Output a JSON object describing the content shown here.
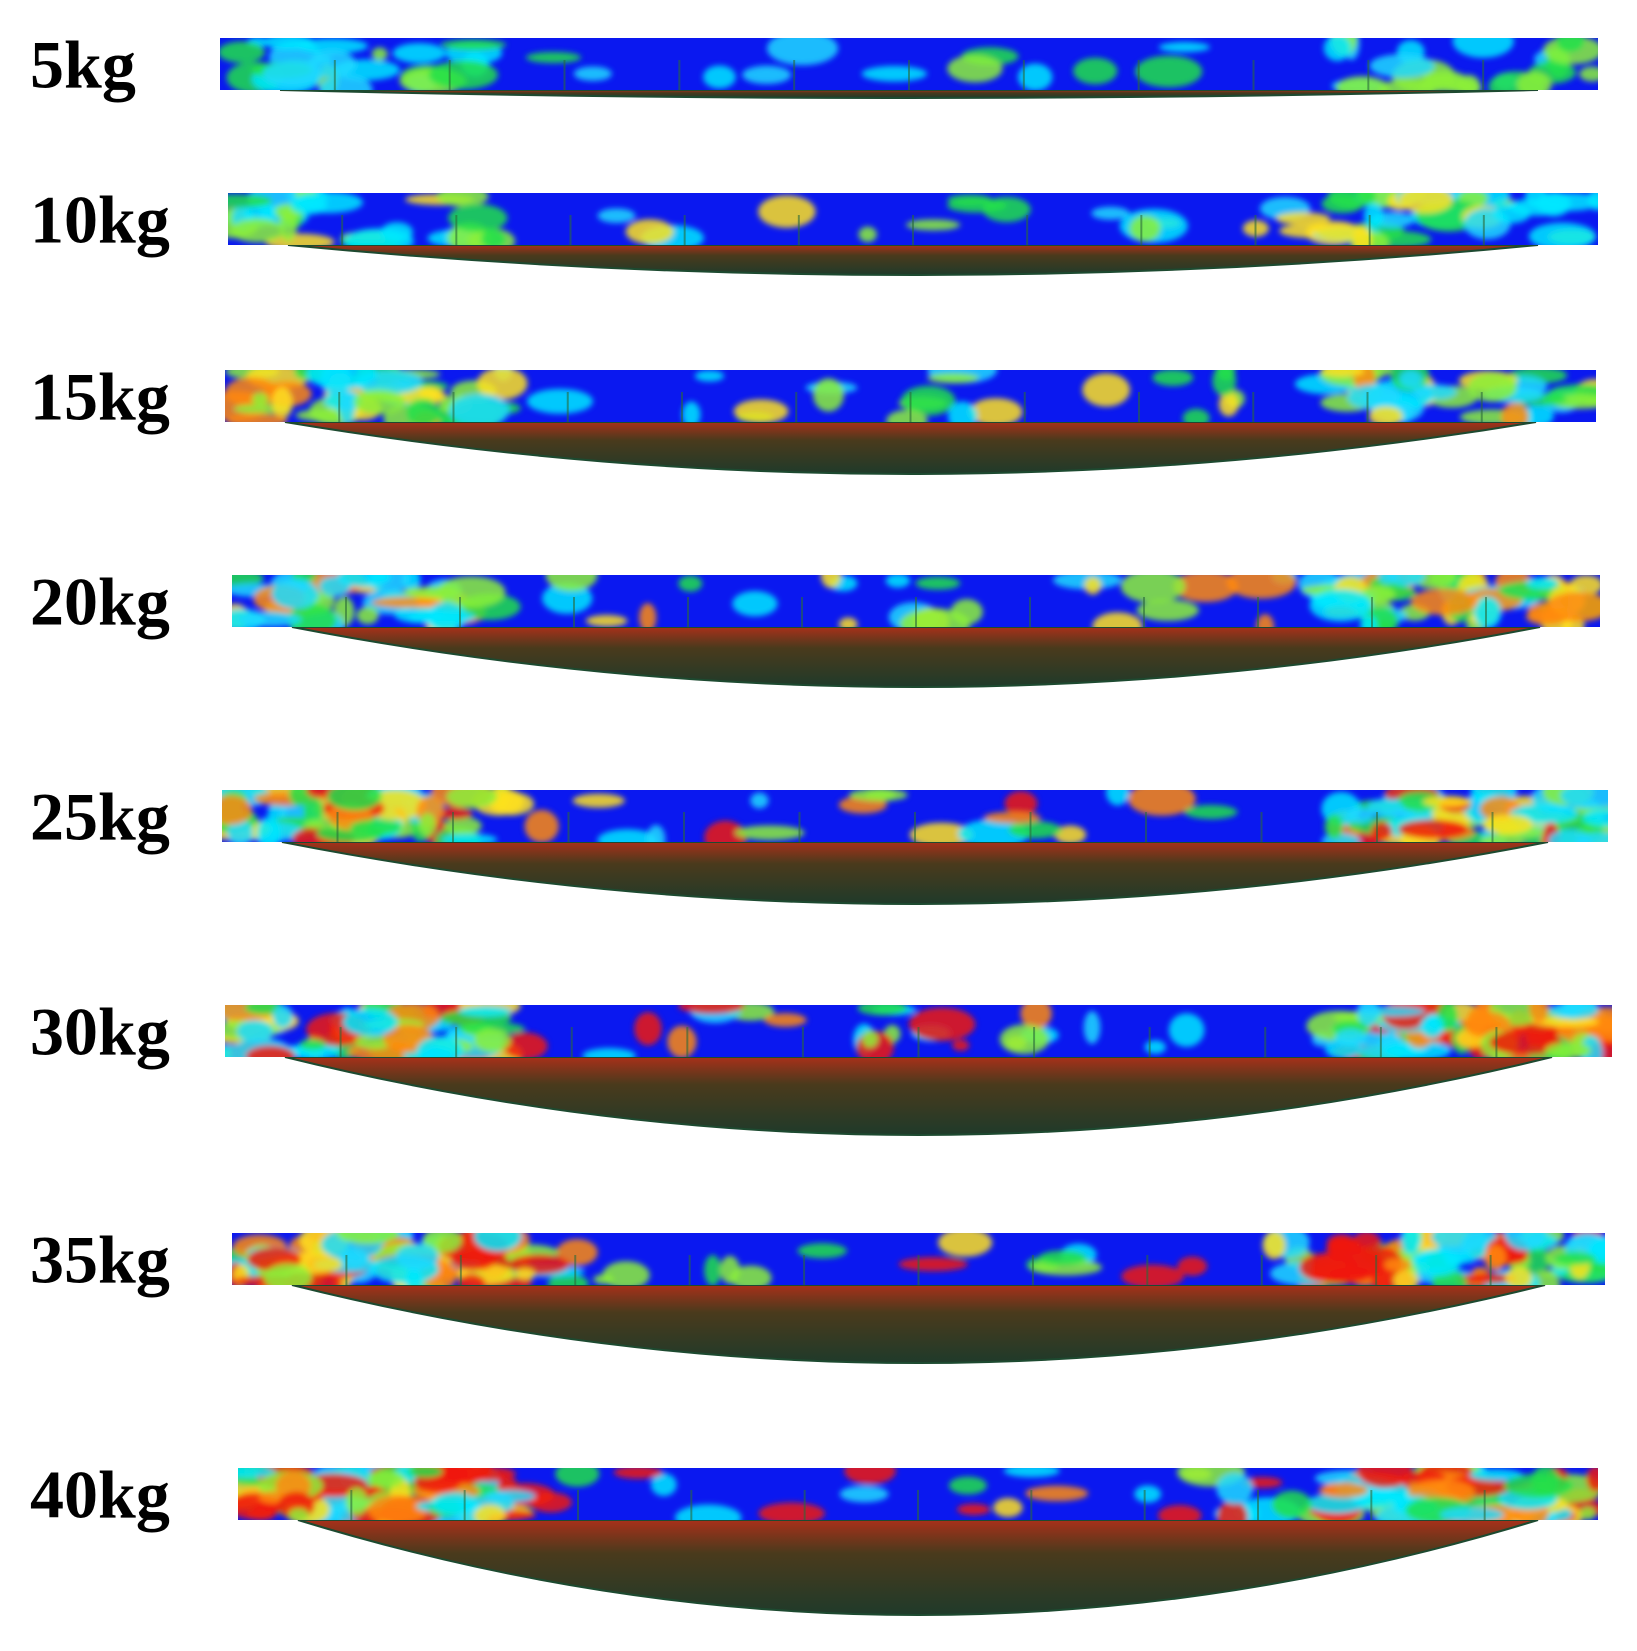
{
  "panels": [
    {
      "label": "5kg"
    },
    {
      "label": "10kg"
    },
    {
      "label": "15kg"
    },
    {
      "label": "20kg"
    },
    {
      "label": "25kg"
    },
    {
      "label": "30kg"
    },
    {
      "label": "35kg"
    },
    {
      "label": "40kg"
    }
  ]
}
